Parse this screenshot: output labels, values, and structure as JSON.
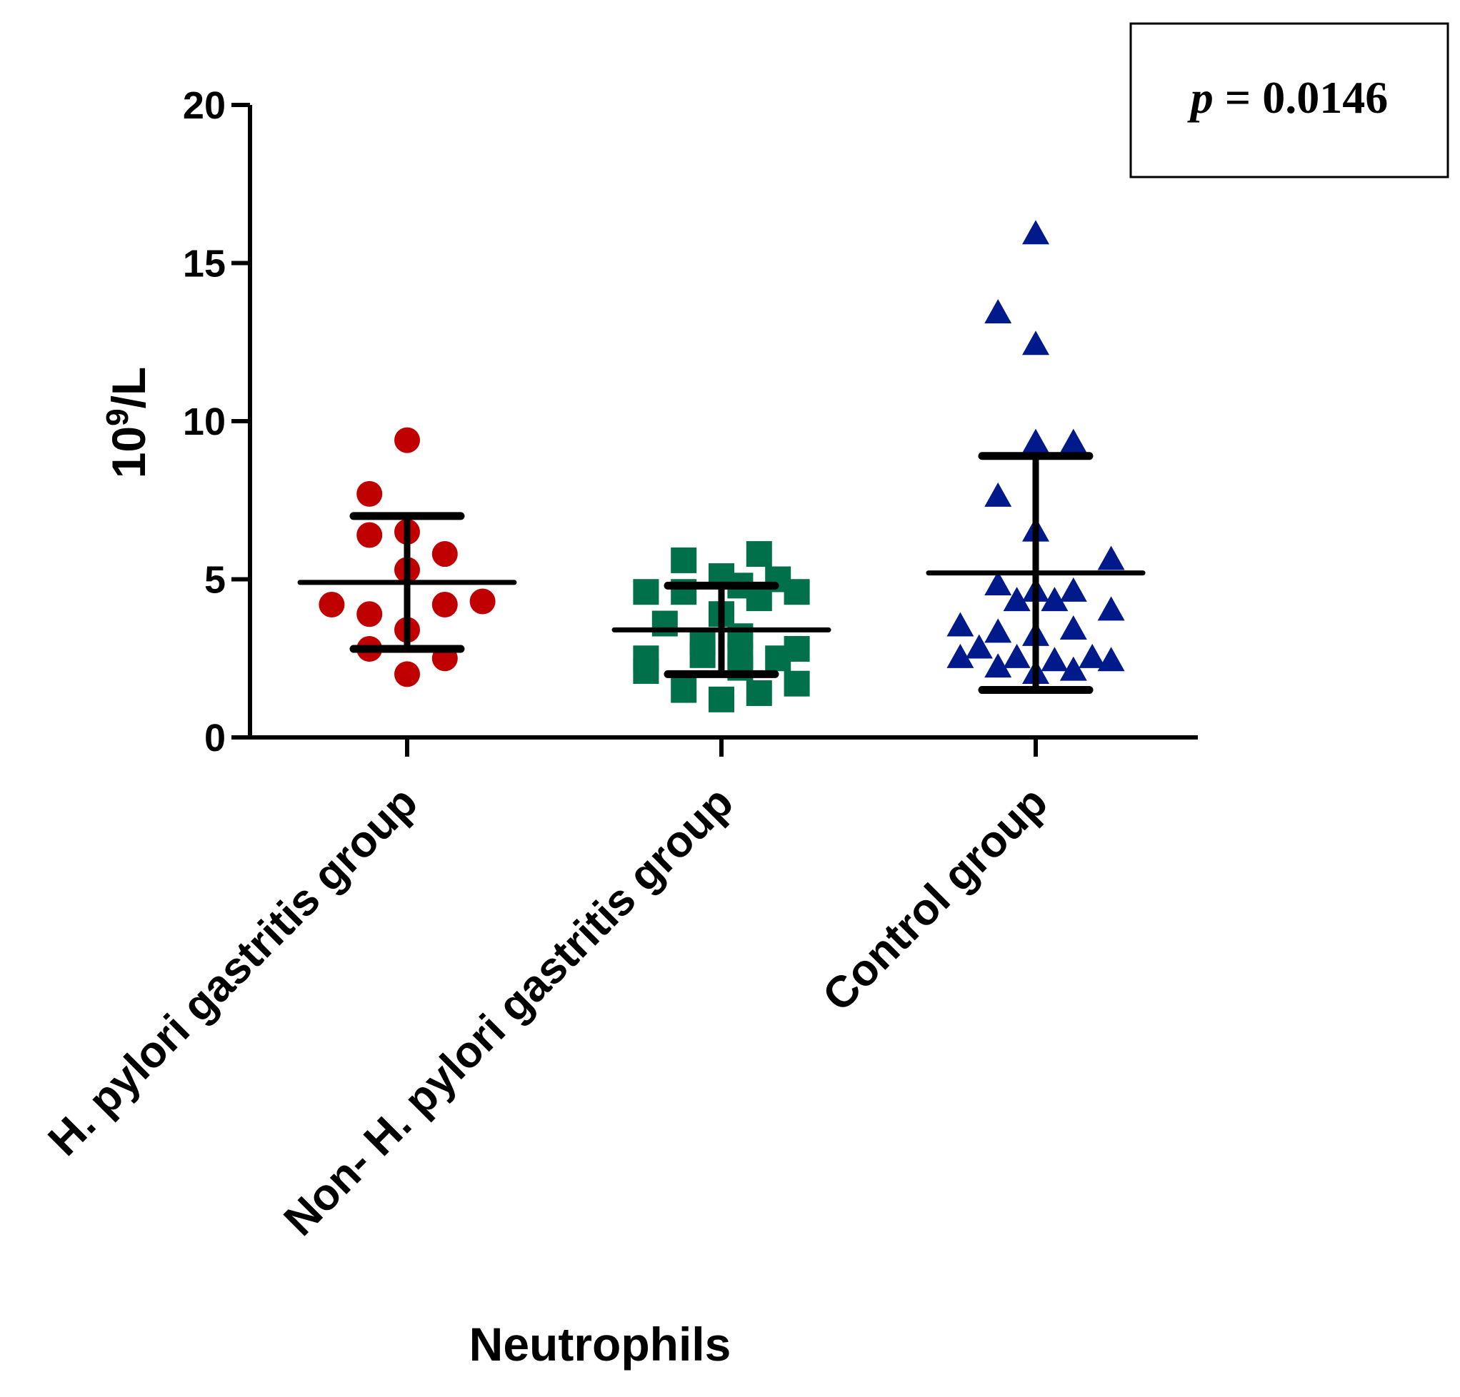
{
  "chart_data": {
    "type": "scatter",
    "title": "",
    "xlabel": "Neutrophils",
    "ylabel_base": "10",
    "ylabel_sup": "9",
    "ylabel_rest": "/L",
    "ylim": [
      0,
      20
    ],
    "yticks": [
      "0",
      "5",
      "10",
      "15",
      "20"
    ],
    "annotation": {
      "p_symbol": "p",
      "p_rest": " = 0.0146"
    },
    "categories": [
      "H. pylori gastritis group",
      "Non- H. pylori gastritis group",
      "Control group"
    ],
    "series": [
      {
        "name": "H. pylori gastritis group",
        "marker": "circle",
        "color": "#c00000",
        "median": 4.9,
        "q1": 2.8,
        "q3": 7.0,
        "points": [
          [
            0,
            9.4
          ],
          [
            -0.12,
            7.7
          ],
          [
            -0.12,
            6.4
          ],
          [
            0,
            6.5
          ],
          [
            0.12,
            5.8
          ],
          [
            0,
            5.3
          ],
          [
            -0.24,
            4.2
          ],
          [
            0.12,
            4.2
          ],
          [
            0.24,
            4.3
          ],
          [
            -0.12,
            3.9
          ],
          [
            0,
            3.4
          ],
          [
            -0.12,
            2.8
          ],
          [
            0.12,
            2.5
          ],
          [
            0,
            2.0
          ]
        ]
      },
      {
        "name": "Non- H. pylori gastritis group",
        "marker": "square",
        "color": "#00704a",
        "median": 3.4,
        "q1": 2.0,
        "q3": 4.8,
        "points": [
          [
            -0.12,
            5.6
          ],
          [
            0.12,
            5.8
          ],
          [
            0,
            5.1
          ],
          [
            0.18,
            5.0
          ],
          [
            -0.24,
            4.6
          ],
          [
            -0.12,
            4.6
          ],
          [
            0.06,
            4.8
          ],
          [
            0.24,
            4.6
          ],
          [
            0.12,
            4.4
          ],
          [
            0,
            3.9
          ],
          [
            -0.18,
            3.6
          ],
          [
            0.06,
            3.2
          ],
          [
            -0.06,
            3.0
          ],
          [
            0.24,
            2.8
          ],
          [
            -0.24,
            2.5
          ],
          [
            -0.06,
            2.6
          ],
          [
            0.06,
            2.6
          ],
          [
            0.18,
            2.5
          ],
          [
            -0.24,
            2.1
          ],
          [
            0.06,
            2.2
          ],
          [
            -0.12,
            1.5
          ],
          [
            0.24,
            1.7
          ],
          [
            0.12,
            1.4
          ],
          [
            0,
            1.2
          ]
        ]
      },
      {
        "name": "Control group",
        "marker": "triangle",
        "color": "#001a8c",
        "median": 5.2,
        "q1": 1.5,
        "q3": 8.9,
        "points": [
          [
            0,
            15.9
          ],
          [
            -0.12,
            13.4
          ],
          [
            0,
            12.4
          ],
          [
            0,
            9.3
          ],
          [
            0.12,
            9.3
          ],
          [
            -0.12,
            7.6
          ],
          [
            0,
            6.5
          ],
          [
            0.24,
            5.6
          ],
          [
            -0.12,
            4.8
          ],
          [
            0.12,
            4.6
          ],
          [
            0,
            4.6
          ],
          [
            0.06,
            4.3
          ],
          [
            -0.06,
            4.3
          ],
          [
            0.24,
            4.0
          ],
          [
            -0.24,
            3.5
          ],
          [
            -0.12,
            3.3
          ],
          [
            0.12,
            3.4
          ],
          [
            0,
            3.2
          ],
          [
            -0.18,
            2.8
          ],
          [
            0.18,
            2.5
          ],
          [
            -0.24,
            2.5
          ],
          [
            -0.06,
            2.5
          ],
          [
            0.06,
            2.4
          ],
          [
            0.24,
            2.4
          ],
          [
            -0.12,
            2.2
          ],
          [
            0.12,
            2.1
          ],
          [
            0,
            2.0
          ]
        ]
      }
    ]
  }
}
